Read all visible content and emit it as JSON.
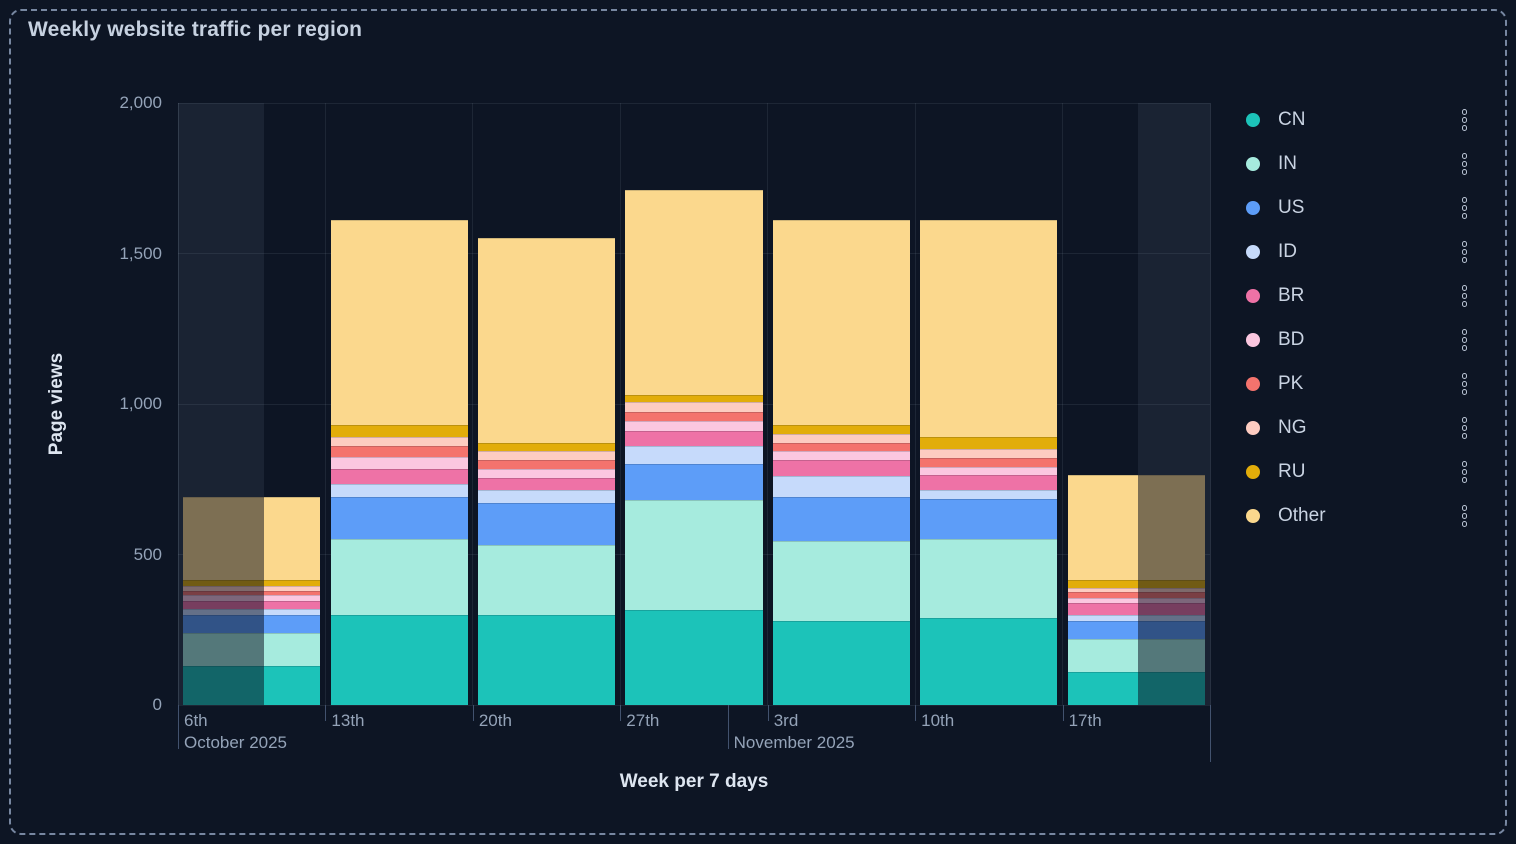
{
  "chart_data": {
    "type": "bar",
    "stacked": true,
    "title": "Weekly website traffic per region",
    "xlabel": "Week per 7 days",
    "ylabel": "Page views",
    "ylim": [
      0,
      2000
    ],
    "grid": true,
    "legend_position": "right",
    "yticks": [
      {
        "value": 0,
        "label": "0"
      },
      {
        "value": 500,
        "label": "500"
      },
      {
        "value": 1000,
        "label": "1,000"
      },
      {
        "value": 1500,
        "label": "1,500"
      },
      {
        "value": 2000,
        "label": "2,000"
      }
    ],
    "categories": [
      "6th",
      "13th",
      "20th",
      "27th",
      "3rd",
      "10th",
      "17th"
    ],
    "months": [
      {
        "label": "October 2025",
        "tick_frac": 0.0
      },
      {
        "label": "November 2025",
        "tick_frac": 0.5326
      }
    ],
    "series": [
      {
        "name": "CN",
        "color": "#1cc3b9",
        "values": [
          130,
          300,
          300,
          315,
          280,
          290,
          110
        ]
      },
      {
        "name": "IN",
        "color": "#a6ebde",
        "values": [
          110,
          250,
          230,
          365,
          265,
          260,
          110
        ]
      },
      {
        "name": "US",
        "color": "#5d9df8",
        "values": [
          60,
          140,
          140,
          120,
          145,
          135,
          60
        ]
      },
      {
        "name": "ID",
        "color": "#c6dafb",
        "values": [
          20,
          45,
          45,
          60,
          70,
          30,
          20
        ]
      },
      {
        "name": "BR",
        "color": "#ee72a6",
        "values": [
          25,
          50,
          40,
          50,
          55,
          50,
          40
        ]
      },
      {
        "name": "BD",
        "color": "#fbc7e0",
        "values": [
          20,
          40,
          30,
          35,
          30,
          25,
          15
        ]
      },
      {
        "name": "PK",
        "color": "#f4736d",
        "values": [
          15,
          35,
          30,
          30,
          25,
          30,
          20
        ]
      },
      {
        "name": "NG",
        "color": "#fdccc1",
        "values": [
          15,
          30,
          30,
          30,
          30,
          30,
          15
        ]
      },
      {
        "name": "RU",
        "color": "#e2ad0a",
        "values": [
          20,
          40,
          25,
          25,
          30,
          40,
          25
        ]
      },
      {
        "name": "Other",
        "color": "#fbd88d",
        "values": [
          275,
          680,
          680,
          680,
          680,
          720,
          350
        ]
      }
    ],
    "partial_weeks": [
      {
        "index": 0,
        "side": "left",
        "frac": 0.583
      },
      {
        "index": 6,
        "side": "right",
        "frac": 0.488
      }
    ]
  }
}
